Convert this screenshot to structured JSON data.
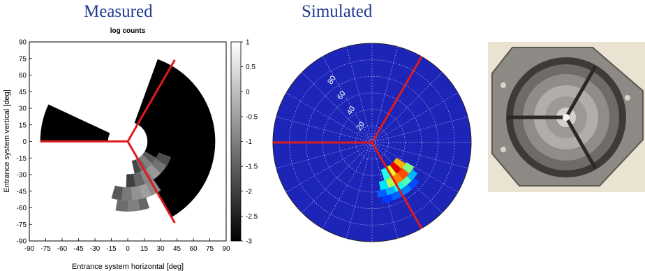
{
  "panels": {
    "measured_title": "Measured",
    "simulated_title": "Simulated"
  },
  "colors": {
    "title": "#1f3a93",
    "separator": "#e01b1b",
    "polar_background": "#1d24b8",
    "grid": "#9aa4e8"
  },
  "chart_data": [
    {
      "type": "heatmap",
      "panel": "Measured",
      "title": "log counts",
      "xlabel": "Entrance system horizontal [deg]",
      "ylabel": "Entrance system vertical [deg]",
      "xlim": [
        -90,
        90
      ],
      "ylim": [
        -90,
        90
      ],
      "xticks": [
        "-90",
        "-75",
        "-60",
        "-45",
        "-30",
        "-15",
        "0",
        "15",
        "30",
        "45",
        "60",
        "75",
        "90"
      ],
      "yticks": [
        "90",
        "75",
        "60",
        "45",
        "30",
        "15",
        "0",
        "-15",
        "-30",
        "-45",
        "-60",
        "-75",
        "-90"
      ],
      "colorbar": {
        "ticks": [
          "1",
          "0.5",
          "0",
          "-0.5",
          "-1",
          "-1.5",
          "-2",
          "-2.5",
          "-3"
        ],
        "range": [
          -3,
          1
        ]
      },
      "field_of_view": {
        "inner_radius_deg": 18,
        "outer_radius_deg": 80,
        "arcs_deg": [
          [
            -60,
            70
          ],
          [
            155,
            180
          ]
        ]
      },
      "separator_angles_deg": [
        60,
        180,
        -60
      ],
      "cells": [
        {
          "r": [
            18,
            30
          ],
          "a": [
            -42,
            -30
          ],
          "v": -1.6
        },
        {
          "r": [
            18,
            30
          ],
          "a": [
            -54,
            -42
          ],
          "v": -1.0
        },
        {
          "r": [
            18,
            30
          ],
          "a": [
            -66,
            -54
          ],
          "v": -1.3
        },
        {
          "r": [
            18,
            30
          ],
          "a": [
            -78,
            -66
          ],
          "v": -1.9
        },
        {
          "r": [
            30,
            42
          ],
          "a": [
            -32,
            -20
          ],
          "v": -1.8
        },
        {
          "r": [
            30,
            42
          ],
          "a": [
            -44,
            -32
          ],
          "v": -1.2
        },
        {
          "r": [
            30,
            42
          ],
          "a": [
            -56,
            -44
          ],
          "v": -0.6
        },
        {
          "r": [
            30,
            42
          ],
          "a": [
            -68,
            -56
          ],
          "v": -0.9
        },
        {
          "r": [
            30,
            42
          ],
          "a": [
            -80,
            -68
          ],
          "v": -1.4
        },
        {
          "r": [
            30,
            42
          ],
          "a": [
            -92,
            -80
          ],
          "v": -2.0
        },
        {
          "r": [
            42,
            54
          ],
          "a": [
            -66,
            -56
          ],
          "v": -0.8
        },
        {
          "r": [
            42,
            54
          ],
          "a": [
            -76,
            -66
          ],
          "v": -0.5
        },
        {
          "r": [
            42,
            54
          ],
          "a": [
            -86,
            -76
          ],
          "v": -0.7
        },
        {
          "r": [
            42,
            54
          ],
          "a": [
            -96,
            -86
          ],
          "v": -1.1
        },
        {
          "r": [
            42,
            54
          ],
          "a": [
            -106,
            -96
          ],
          "v": -1.6
        },
        {
          "r": [
            54,
            64
          ],
          "a": [
            -80,
            -72
          ],
          "v": -1.4
        },
        {
          "r": [
            54,
            64
          ],
          "a": [
            -90,
            -80
          ],
          "v": -1.0
        },
        {
          "r": [
            54,
            64
          ],
          "a": [
            -100,
            -90
          ],
          "v": -1.3
        }
      ]
    },
    {
      "type": "heatmap",
      "panel": "Simulated",
      "projection": "polar",
      "ring_labels": [
        "80",
        "60",
        "40",
        "20"
      ],
      "ring_values_deg": [
        80,
        60,
        40,
        20
      ],
      "spoke_step_deg": 15,
      "separator_angles_deg": [
        60,
        180,
        -60
      ],
      "cells": [
        {
          "r": [
            26,
            36
          ],
          "a": [
            -42,
            -32
          ],
          "v": 0.7
        },
        {
          "r": [
            26,
            36
          ],
          "a": [
            -52,
            -42
          ],
          "v": 0.9
        },
        {
          "r": [
            26,
            36
          ],
          "a": [
            -62,
            -52
          ],
          "v": 0.6
        },
        {
          "r": [
            26,
            36
          ],
          "a": [
            -72,
            -62
          ],
          "v": 0.4
        },
        {
          "r": [
            36,
            44
          ],
          "a": [
            -40,
            -30
          ],
          "v": 0.5
        },
        {
          "r": [
            36,
            44
          ],
          "a": [
            -50,
            -40
          ],
          "v": 0.8
        },
        {
          "r": [
            36,
            44
          ],
          "a": [
            -60,
            -50
          ],
          "v": 0.75
        },
        {
          "r": [
            36,
            44
          ],
          "a": [
            -70,
            -60
          ],
          "v": 0.55
        },
        {
          "r": [
            36,
            44
          ],
          "a": [
            -80,
            -70
          ],
          "v": 0.35
        },
        {
          "r": [
            44,
            50
          ],
          "a": [
            -44,
            -34
          ],
          "v": 0.3
        },
        {
          "r": [
            44,
            50
          ],
          "a": [
            -54,
            -44
          ],
          "v": 0.45
        },
        {
          "r": [
            44,
            50
          ],
          "a": [
            -64,
            -54
          ],
          "v": 0.4
        },
        {
          "r": [
            44,
            50
          ],
          "a": [
            -74,
            -64
          ],
          "v": 0.3
        },
        {
          "r": [
            44,
            50
          ],
          "a": [
            -84,
            -74
          ],
          "v": 0.22
        },
        {
          "r": [
            50,
            56
          ],
          "a": [
            -50,
            -40
          ],
          "v": 0.2
        },
        {
          "r": [
            50,
            56
          ],
          "a": [
            -60,
            -50
          ],
          "v": 0.25
        },
        {
          "r": [
            50,
            56
          ],
          "a": [
            -70,
            -60
          ],
          "v": 0.22
        },
        {
          "r": [
            50,
            56
          ],
          "a": [
            -80,
            -70
          ],
          "v": 0.18
        }
      ]
    }
  ]
}
